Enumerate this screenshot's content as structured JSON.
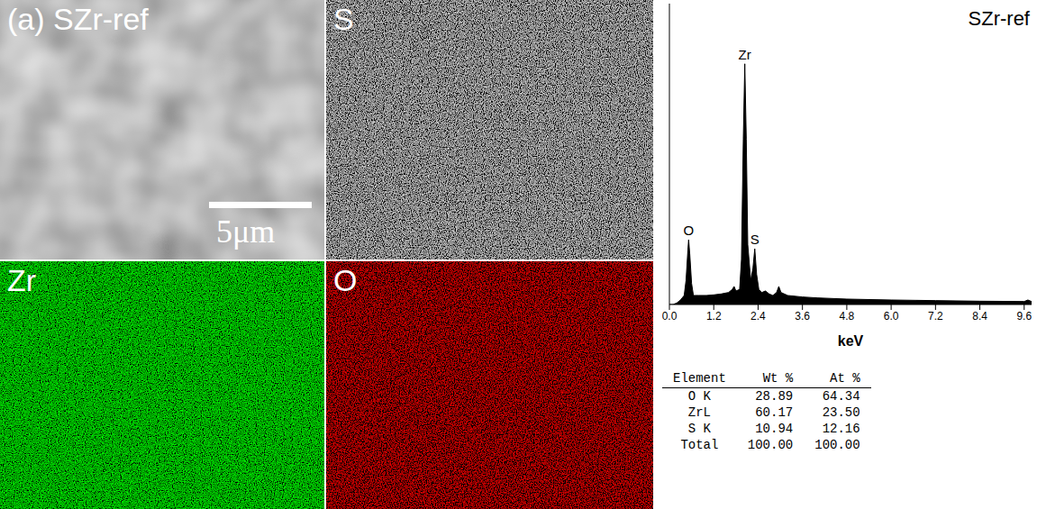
{
  "figure": {
    "panels": [
      {
        "label": "(a) SZr-ref",
        "scale_bar": "5μm"
      },
      {
        "label": "S"
      },
      {
        "label": "Zr"
      },
      {
        "label": "O"
      }
    ]
  },
  "chart_data": {
    "type": "area",
    "title": "SZr-ref",
    "xlabel": "keV",
    "color": "#000000",
    "tick_labels": "x",
    "xlim": [
      0,
      9.8
    ],
    "ylim": [
      0,
      100
    ],
    "xticks": [
      {
        "value": 0,
        "label": "0.0"
      },
      {
        "value": 1.2,
        "label": "1.2"
      },
      {
        "value": 2.4,
        "label": "2.4"
      },
      {
        "value": 3.6,
        "label": "3.6"
      },
      {
        "value": 4.8,
        "label": "4.8"
      },
      {
        "value": 6,
        "label": "6.0"
      },
      {
        "value": 7.2,
        "label": "7.2"
      },
      {
        "value": 8.4,
        "label": "8.4"
      },
      {
        "value": 9.6,
        "label": "9.6"
      }
    ],
    "x": [
      0,
      0.1,
      0.2,
      0.3,
      0.4,
      0.45,
      0.5,
      0.52,
      0.55,
      0.6,
      0.65,
      0.7,
      0.8,
      1.0,
      1.2,
      1.4,
      1.6,
      1.7,
      1.75,
      1.8,
      1.9,
      1.95,
      2.0,
      2.04,
      2.08,
      2.12,
      2.2,
      2.26,
      2.31,
      2.36,
      2.42,
      2.5,
      2.6,
      2.7,
      2.8,
      2.9,
      2.96,
      3.02,
      3.2,
      3.6,
      4.0,
      4.8,
      6.0,
      7.2,
      8.4,
      9.6,
      9.7,
      9.8
    ],
    "values": [
      0,
      0,
      0.5,
      1.5,
      3,
      8,
      18,
      21.5,
      17,
      7,
      3,
      3,
      3,
      3,
      3.2,
      3.5,
      4,
      5,
      6,
      4.5,
      5,
      15,
      55,
      80,
      55,
      20,
      8,
      12,
      18.5,
      10,
      5,
      4,
      4.5,
      3.5,
      3,
      4,
      6,
      4,
      3,
      2.5,
      2.2,
      1.8,
      1.5,
      1.3,
      1.1,
      1,
      1.5,
      1
    ],
    "annotations": [
      {
        "text": "O",
        "x": 0.52,
        "y": 21.5
      },
      {
        "text": "Zr",
        "x": 2.04,
        "y": 80
      },
      {
        "text": "S",
        "x": 2.31,
        "y": 18.5
      }
    ]
  },
  "table": {
    "header": [
      "Element",
      "Wt %",
      "At %"
    ],
    "rows": [
      [
        "O K",
        "28.89",
        "64.34"
      ],
      [
        "ZrL",
        "60.17",
        "23.50"
      ],
      [
        "S K",
        "10.94",
        "12.16"
      ],
      [
        "Total",
        "100.00",
        "100.00"
      ]
    ]
  }
}
